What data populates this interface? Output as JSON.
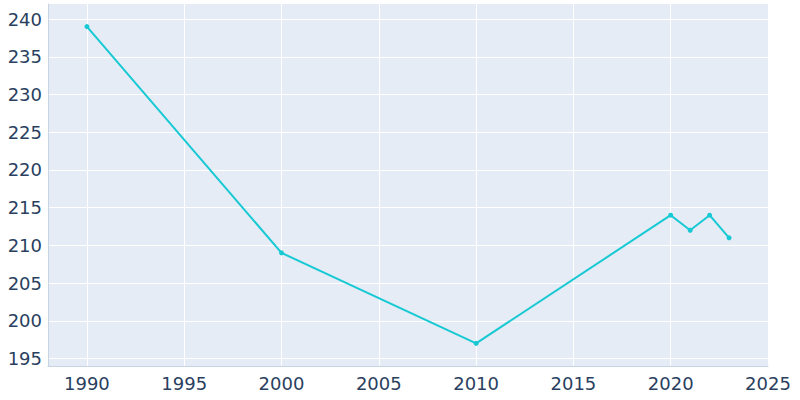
{
  "chart_data": {
    "type": "line",
    "x": [
      1990,
      2000,
      2010,
      2020,
      2021,
      2022,
      2023
    ],
    "values": [
      239,
      209,
      197,
      214,
      212,
      214,
      211
    ],
    "color": "#17c9d3",
    "marker": "circle",
    "xlim": [
      1988,
      2025
    ],
    "xticks": [
      1990,
      1995,
      2000,
      2005,
      2010,
      2015,
      2020,
      2025
    ],
    "ylim": [
      194,
      242
    ],
    "yticks": [
      195,
      200,
      205,
      210,
      215,
      220,
      225,
      230,
      235,
      240
    ],
    "grid": true
  }
}
